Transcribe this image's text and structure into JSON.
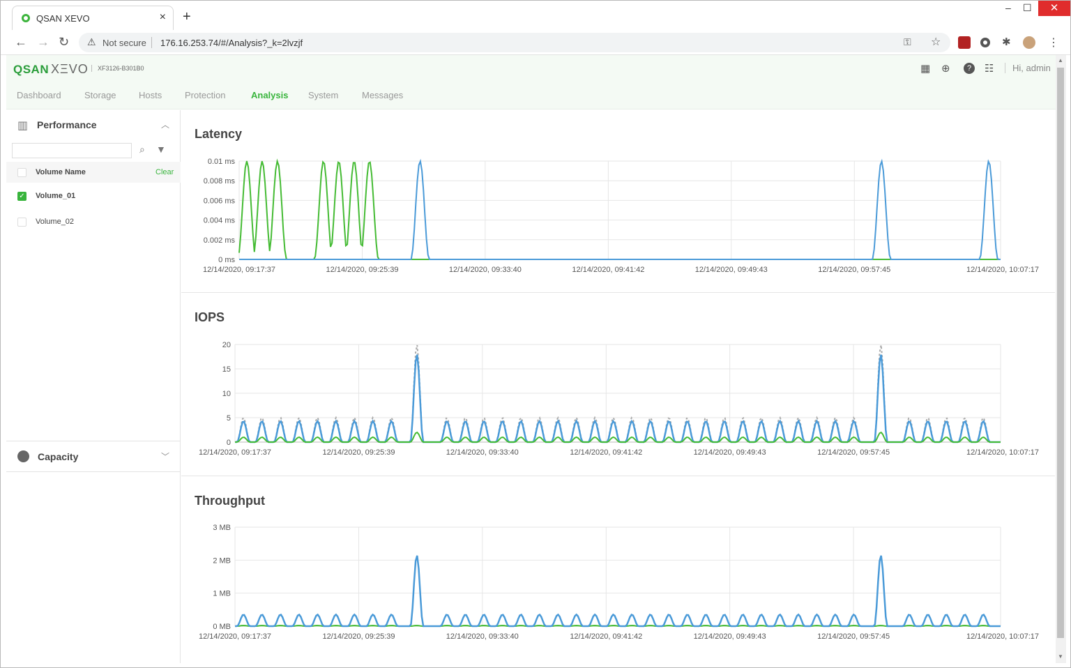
{
  "browser": {
    "tab_title": "QSAN XEVO",
    "tab_close": "×",
    "new_tab": "+",
    "min": "–",
    "max": "☐",
    "close": "✕",
    "not_secure": "Not secure",
    "url": "176.16.253.74/#/Analysis?_k=2lvzjf"
  },
  "header": {
    "logo_main": "QSAN",
    "logo_sub": "XΞVO",
    "model": "XF3126-B301B0",
    "greeting": "Hi, admin"
  },
  "menu": [
    "Dashboard",
    "Storage",
    "Hosts",
    "Protection",
    "Analysis",
    "System",
    "Messages"
  ],
  "menu_active": "Analysis",
  "sidebar": {
    "performance_label": "Performance",
    "volume_header": "Volume Name",
    "clear_label": "Clear",
    "volumes": [
      {
        "name": "Volume_01",
        "checked": true
      },
      {
        "name": "Volume_02",
        "checked": false
      }
    ],
    "capacity_label": "Capacity"
  },
  "colors": {
    "accent": "#38b43c",
    "series_blue": "#4a9ad8",
    "series_green": "#44bb33",
    "series_gray": "#aaaaaa"
  },
  "chart_data": [
    {
      "type": "line",
      "title": "Latency",
      "x": [
        "12/14/2020, 09:17:37",
        "12/14/2020, 09:25:39",
        "12/14/2020, 09:33:40",
        "12/14/2020, 09:41:42",
        "12/14/2020, 09:49:43",
        "12/14/2020, 09:57:45",
        "12/14/2020, 10:07:17"
      ],
      "y_ticks": [
        "0 ms",
        "0.002 ms",
        "0.004 ms",
        "0.006 ms",
        "0.008 ms",
        "0.01 ms"
      ],
      "ylim": [
        0,
        0.01
      ],
      "series": [
        {
          "color": "green",
          "peaks_at_minutes": [
            0.5,
            1.5,
            2.5,
            5.5,
            6.5,
            7.5,
            8.5
          ],
          "peak": 0.01
        },
        {
          "color": "blue",
          "peaks_at_minutes": [
            11.8,
            41.9,
            48.9
          ],
          "peak": 0.01
        }
      ]
    },
    {
      "type": "line",
      "title": "IOPS",
      "x": [
        "12/14/2020, 09:17:37",
        "12/14/2020, 09:25:39",
        "12/14/2020, 09:33:40",
        "12/14/2020, 09:41:42",
        "12/14/2020, 09:49:43",
        "12/14/2020, 09:57:45",
        "12/14/2020, 10:07:17"
      ],
      "y_ticks": [
        "0",
        "5",
        "10",
        "15",
        "20"
      ],
      "ylim": [
        0,
        20
      ],
      "series": [
        {
          "color": "gray-dashed",
          "typical_peak": 5,
          "spike_peak": 20
        },
        {
          "color": "blue",
          "typical_peak": 4.3,
          "spike_peak": 18
        },
        {
          "color": "green",
          "typical_peak": 1,
          "spike_peak": 2
        }
      ],
      "spikes_at_minutes": [
        11.8,
        41.9
      ]
    },
    {
      "type": "line",
      "title": "Throughput",
      "x": [
        "12/14/2020, 09:17:37",
        "12/14/2020, 09:25:39",
        "12/14/2020, 09:33:40",
        "12/14/2020, 09:41:42",
        "12/14/2020, 09:49:43",
        "12/14/2020, 09:57:45",
        "12/14/2020, 10:07:17"
      ],
      "y_ticks": [
        "0 MB",
        "1 MB",
        "2 MB",
        "3 MB"
      ],
      "ylim": [
        0,
        3
      ],
      "series": [
        {
          "color": "blue",
          "typical_peak": 0.35,
          "spike_peak": 2.15
        },
        {
          "color": "green",
          "typical_peak": 0.02,
          "spike_peak": 0.02
        }
      ],
      "spikes_at_minutes": [
        11.8,
        41.9
      ]
    }
  ]
}
